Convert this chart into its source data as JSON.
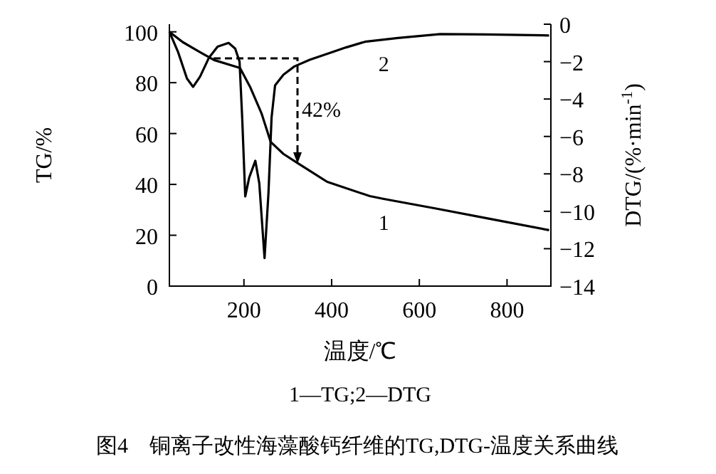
{
  "chart_data": {
    "type": "line",
    "title": "图4　铜离子改性海藻酸钙纤维的TG,DTG-温度关系曲线",
    "xlabel": "温度/℃",
    "ylabel": "TG/%",
    "y2label": "DTG/(%·min$^{-1}$)",
    "xlim": [
      30,
      900
    ],
    "xticks": [
      200,
      400,
      600,
      800
    ],
    "ylim": [
      0,
      103
    ],
    "yticks": [
      0,
      20,
      40,
      60,
      80,
      100
    ],
    "y2lim": [
      -14,
      0
    ],
    "y2ticks": [
      -14,
      -12,
      -10,
      -8,
      -6,
      -4,
      -2,
      0
    ],
    "grid": false,
    "marker": "none",
    "line_style": "solid",
    "series": [
      {
        "name": "1",
        "color": "#000000",
        "x": [
          30,
          60,
          100,
          132,
          191,
          215,
          240,
          261,
          290,
          323,
          390,
          487,
          519,
          638,
          760,
          896
        ],
        "values": [
          100,
          96,
          92,
          88.9,
          85.8,
          78,
          68,
          56.7,
          52,
          48.3,
          41,
          35.4,
          34.3,
          30.5,
          26.5,
          22
        ]
      },
      {
        "name": "2",
        "color": "#000000",
        "axis": "y2",
        "x": [
          30,
          50,
          70,
          84,
          100,
          120,
          140,
          165,
          180,
          190,
          196,
          203,
          212,
          226,
          235,
          247,
          256,
          263,
          271,
          290,
          315,
          350,
          400,
          433,
          476,
          551,
          648,
          750,
          896
        ],
        "values": [
          -0.4,
          -1.5,
          -2.9,
          -3.35,
          -2.8,
          -1.8,
          -1.2,
          -1.0,
          -1.3,
          -2.0,
          -5,
          -9.2,
          -8.2,
          -7.3,
          -8.5,
          -12.5,
          -9,
          -5,
          -3.27,
          -2.7,
          -2.26,
          -1.9,
          -1.5,
          -1.24,
          -0.94,
          -0.74,
          -0.53,
          -0.55,
          -0.6
        ]
      }
    ],
    "annotations": [
      "42%",
      "1—TG;2—DTG"
    ]
  }
}
